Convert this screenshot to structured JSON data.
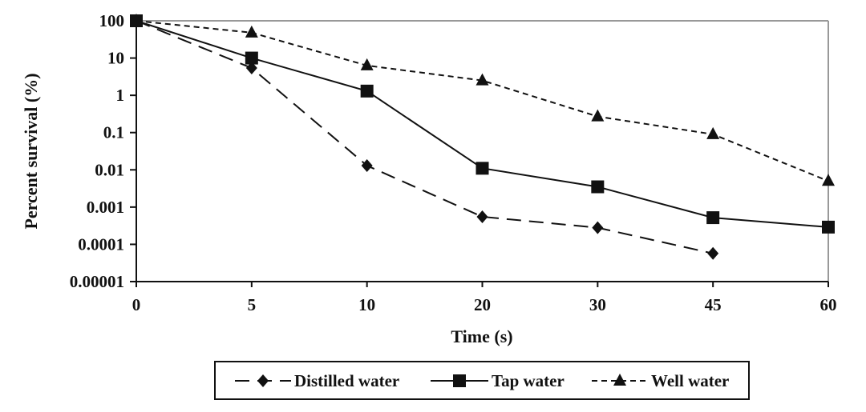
{
  "chart_data": {
    "type": "line",
    "xlabel": "Time (s)",
    "ylabel": "Percent survival (%)",
    "x_categories": [
      "0",
      "5",
      "10",
      "20",
      "30",
      "45",
      "60"
    ],
    "y_scale": "log",
    "ylim": [
      1e-05,
      100
    ],
    "y_ticks": [
      "100",
      "10",
      "1",
      "0.1",
      "0.01",
      "0.001",
      "0.0001",
      "0.00001"
    ],
    "grid": false,
    "legend_position": "bottom",
    "series": [
      {
        "name": "Distilled water",
        "marker": "diamond",
        "line": "long-dash",
        "color": "#111111",
        "values": [
          100,
          5.4,
          0.013,
          0.00055,
          0.00028,
          5.7e-05,
          null
        ]
      },
      {
        "name": "Tap water",
        "marker": "square",
        "line": "solid",
        "color": "#111111",
        "values": [
          100,
          10,
          1.3,
          0.011,
          0.0035,
          0.00052,
          0.00029
        ]
      },
      {
        "name": "Well water",
        "marker": "triangle",
        "line": "short-dash",
        "color": "#111111",
        "values": [
          100,
          48,
          6.3,
          2.5,
          0.27,
          0.09,
          0.005
        ]
      }
    ]
  }
}
